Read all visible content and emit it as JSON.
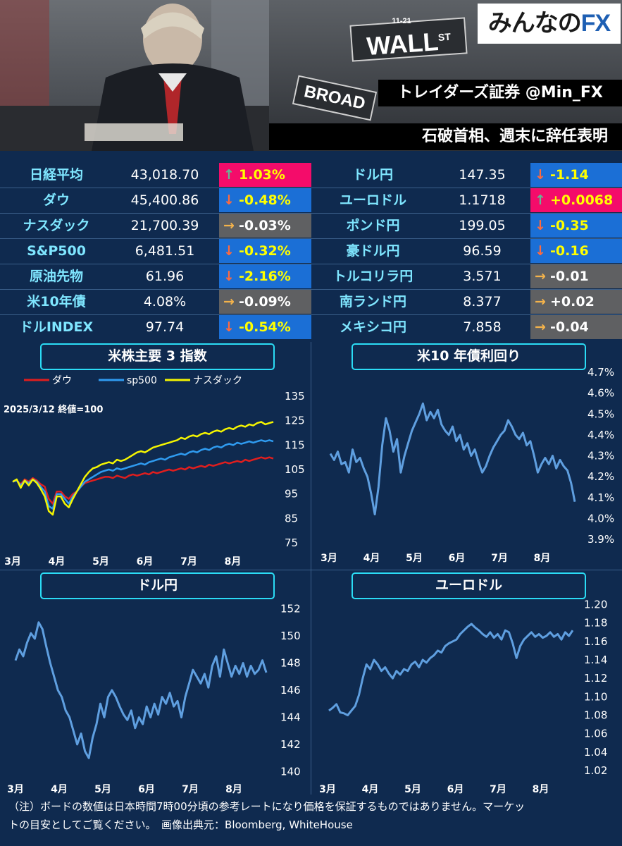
{
  "header": {
    "logo_text": "みんなの",
    "logo_fx": "FX",
    "trader": "トレイダーズ証券 @Min_FX",
    "headline": "石破首相、週末に辞任表明",
    "sign_wall": "WALL",
    "sign_st": "ST",
    "sign_broad": "BROAD",
    "sign_num": "11-21"
  },
  "colors": {
    "up": "#f40c6a",
    "down": "#1b6fd6",
    "flat": "#5f6062",
    "label": "#7fe6ff",
    "accent": "#2bdcf5",
    "line": "#5f9fe0"
  },
  "markets_left": [
    {
      "name": "日経平均",
      "value": "43,018.70",
      "change": "1.03%",
      "dir": "up"
    },
    {
      "name": "ダウ",
      "value": "45,400.86",
      "change": "-0.48%",
      "dir": "down"
    },
    {
      "name": "ナスダック",
      "value": "21,700.39",
      "change": "-0.03%",
      "dir": "flat"
    },
    {
      "name": "S&P500",
      "value": "6,481.51",
      "change": "-0.32%",
      "dir": "down"
    },
    {
      "name": "原油先物",
      "value": "61.96",
      "change": "-2.16%",
      "dir": "down"
    },
    {
      "name": "米10年債",
      "value": "4.08%",
      "change": "-0.09%",
      "dir": "flat"
    },
    {
      "name": "ドルINDEX",
      "value": "97.74",
      "change": "-0.54%",
      "dir": "down"
    }
  ],
  "markets_right": [
    {
      "name": "ドル円",
      "value": "147.35",
      "change": "-1.14",
      "dir": "down"
    },
    {
      "name": "ユーロドル",
      "value": "1.1718",
      "change": "+0.0068",
      "dir": "up"
    },
    {
      "name": "ポンド円",
      "value": "199.05",
      "change": "-0.35",
      "dir": "down"
    },
    {
      "name": "豪ドル円",
      "value": "96.59",
      "change": "-0.16",
      "dir": "down"
    },
    {
      "name": "トルコリラ円",
      "value": "3.571",
      "change": "-0.01",
      "dir": "flat"
    },
    {
      "name": "南ランド円",
      "value": "8.377",
      "change": "+0.02",
      "dir": "flat"
    },
    {
      "name": "メキシコ円",
      "value": "7.858",
      "change": "-0.04",
      "dir": "flat"
    }
  ],
  "chart_data": [
    {
      "type": "line",
      "title": "米株主要 3 指数",
      "annotation": "2025/3/12 終値=100",
      "legend_position": "top",
      "x_labels": [
        "3月",
        "4月",
        "5月",
        "6月",
        "7月",
        "8月"
      ],
      "yticks": [
        75,
        85,
        95,
        105,
        115,
        125,
        135
      ],
      "ylim": [
        75,
        135
      ],
      "series": [
        {
          "name": "ダウ",
          "color": "#e01e1e",
          "values": [
            100,
            100.5,
            99,
            101,
            100,
            101.5,
            100.5,
            99,
            98,
            93,
            91,
            96,
            96,
            94,
            93,
            95,
            96,
            98,
            99.5,
            100,
            100.5,
            101,
            101.5,
            102,
            102,
            101.5,
            102.5,
            102,
            101.5,
            102.5,
            103,
            102.5,
            103,
            103.5,
            103,
            104,
            103.5,
            104,
            104.5,
            105,
            104.5,
            105,
            105.5,
            105,
            106,
            105.5,
            106,
            106.5,
            106,
            107,
            106.5,
            107,
            107.5,
            108,
            107.5,
            108,
            108.5,
            108,
            109,
            108.5,
            109,
            109.5,
            110,
            109.5,
            110,
            109.5
          ]
        },
        {
          "name": "sp500",
          "color": "#2f9bf0",
          "values": [
            100,
            100.5,
            98.5,
            100.5,
            99.5,
            101,
            100,
            98,
            96,
            90,
            89,
            95,
            95,
            93,
            91,
            94,
            96,
            98,
            100,
            101,
            102,
            103,
            104,
            104.5,
            105,
            104.5,
            105.5,
            105,
            105.5,
            106,
            106.5,
            107,
            107.5,
            107,
            108,
            108.5,
            109,
            109.5,
            109,
            110,
            110.5,
            111,
            111.5,
            111,
            112,
            112.5,
            112,
            113,
            113.5,
            113,
            114,
            114.5,
            114,
            115,
            115.5,
            115,
            116,
            115.5,
            116,
            116.5,
            116,
            116.5,
            117,
            116.5,
            117,
            116.5
          ]
        },
        {
          "name": "ナスダック",
          "color": "#f5f500",
          "values": [
            100,
            101,
            97.5,
            100.5,
            98.5,
            101,
            99.5,
            97,
            94,
            88,
            86.5,
            94,
            94,
            91,
            89.5,
            93,
            96,
            99,
            102,
            104,
            105.5,
            106,
            107,
            107.5,
            108,
            107.5,
            109,
            108.5,
            109,
            110,
            111,
            112,
            112.5,
            112,
            113,
            114,
            114.5,
            115,
            115.5,
            116,
            116.5,
            117,
            118,
            117.5,
            118.5,
            119,
            118.5,
            119.5,
            120,
            119.5,
            120.5,
            121,
            120.5,
            121.5,
            122,
            121.5,
            122.5,
            123,
            122.5,
            123.5,
            123,
            124,
            124.5,
            123.5,
            124,
            124.5
          ]
        }
      ]
    },
    {
      "type": "line",
      "title": "米10 年債利回り",
      "x_labels": [
        "3月",
        "4月",
        "5月",
        "6月",
        "7月",
        "8月"
      ],
      "ytick_labels": [
        "3.9%",
        "4.0%",
        "4.1%",
        "4.2%",
        "4.3%",
        "4.4%",
        "4.5%",
        "4.6%",
        "4.7%"
      ],
      "ylim": [
        3.9,
        4.7
      ],
      "series": [
        {
          "name": "",
          "color": "#5f9fe0",
          "values": [
            4.31,
            4.28,
            4.32,
            4.26,
            4.27,
            4.22,
            4.33,
            4.27,
            4.29,
            4.24,
            4.2,
            4.12,
            4.02,
            4.15,
            4.35,
            4.48,
            4.42,
            4.32,
            4.38,
            4.22,
            4.3,
            4.36,
            4.42,
            4.46,
            4.5,
            4.55,
            4.47,
            4.51,
            4.48,
            4.52,
            4.45,
            4.42,
            4.4,
            4.44,
            4.37,
            4.4,
            4.33,
            4.36,
            4.3,
            4.33,
            4.27,
            4.22,
            4.25,
            4.3,
            4.34,
            4.37,
            4.4,
            4.42,
            4.47,
            4.44,
            4.4,
            4.38,
            4.41,
            4.35,
            4.37,
            4.3,
            4.22,
            4.26,
            4.29,
            4.26,
            4.3,
            4.24,
            4.28,
            4.25,
            4.23,
            4.17,
            4.08
          ]
        }
      ]
    },
    {
      "type": "line",
      "title": "ドル円",
      "x_labels": [
        "3月",
        "4月",
        "5月",
        "6月",
        "7月",
        "8月"
      ],
      "yticks": [
        140,
        142,
        144,
        146,
        148,
        150,
        152
      ],
      "ylim": [
        139.5,
        152.5
      ],
      "series": [
        {
          "name": "",
          "color": "#5f9fe0",
          "values": [
            148.2,
            149.0,
            148.5,
            149.5,
            150.2,
            149.8,
            151.0,
            150.5,
            149.2,
            148.0,
            147.0,
            146.0,
            145.5,
            144.5,
            144.0,
            143.0,
            142.0,
            142.8,
            141.5,
            141.0,
            142.5,
            143.5,
            145.0,
            144.0,
            145.5,
            146.0,
            145.5,
            144.8,
            144.2,
            143.8,
            144.5,
            143.2,
            144.0,
            143.5,
            144.8,
            144.0,
            145.0,
            144.2,
            145.5,
            145.0,
            145.8,
            144.8,
            145.2,
            144.0,
            145.5,
            146.5,
            147.5,
            147.0,
            146.5,
            147.2,
            146.2,
            147.8,
            148.5,
            147.0,
            149.0,
            148.0,
            147.0,
            147.8,
            147.2,
            148.0,
            147.0,
            147.8,
            147.2,
            147.5,
            148.2,
            147.3
          ]
        }
      ]
    },
    {
      "type": "line",
      "title": "ユーロドル",
      "x_labels": [
        "3月",
        "4月",
        "5月",
        "6月",
        "7月",
        "8月"
      ],
      "yticks": [
        1.02,
        1.04,
        1.06,
        1.08,
        1.1,
        1.12,
        1.14,
        1.16,
        1.18,
        1.2
      ],
      "ylim": [
        1.01,
        1.205
      ],
      "series": [
        {
          "name": "",
          "color": "#5f9fe0",
          "values": [
            1.085,
            1.088,
            1.092,
            1.083,
            1.082,
            1.08,
            1.085,
            1.09,
            1.102,
            1.12,
            1.135,
            1.13,
            1.14,
            1.135,
            1.128,
            1.132,
            1.125,
            1.12,
            1.128,
            1.124,
            1.13,
            1.128,
            1.135,
            1.138,
            1.132,
            1.14,
            1.137,
            1.142,
            1.145,
            1.15,
            1.148,
            1.155,
            1.158,
            1.16,
            1.162,
            1.168,
            1.172,
            1.176,
            1.179,
            1.175,
            1.172,
            1.168,
            1.165,
            1.17,
            1.164,
            1.168,
            1.162,
            1.172,
            1.17,
            1.158,
            1.142,
            1.155,
            1.162,
            1.166,
            1.17,
            1.165,
            1.168,
            1.164,
            1.166,
            1.17,
            1.165,
            1.168,
            1.162,
            1.17,
            1.166,
            1.172
          ]
        }
      ]
    }
  ],
  "footer": {
    "line1": "（注）ボードの数値は日本時間7時00分頃の参考レートになり価格を保証するものではありません。マーケッ",
    "line2": "トの目安としてご覧ください。　画像出典元：Bloomberg, WhiteHouse"
  }
}
